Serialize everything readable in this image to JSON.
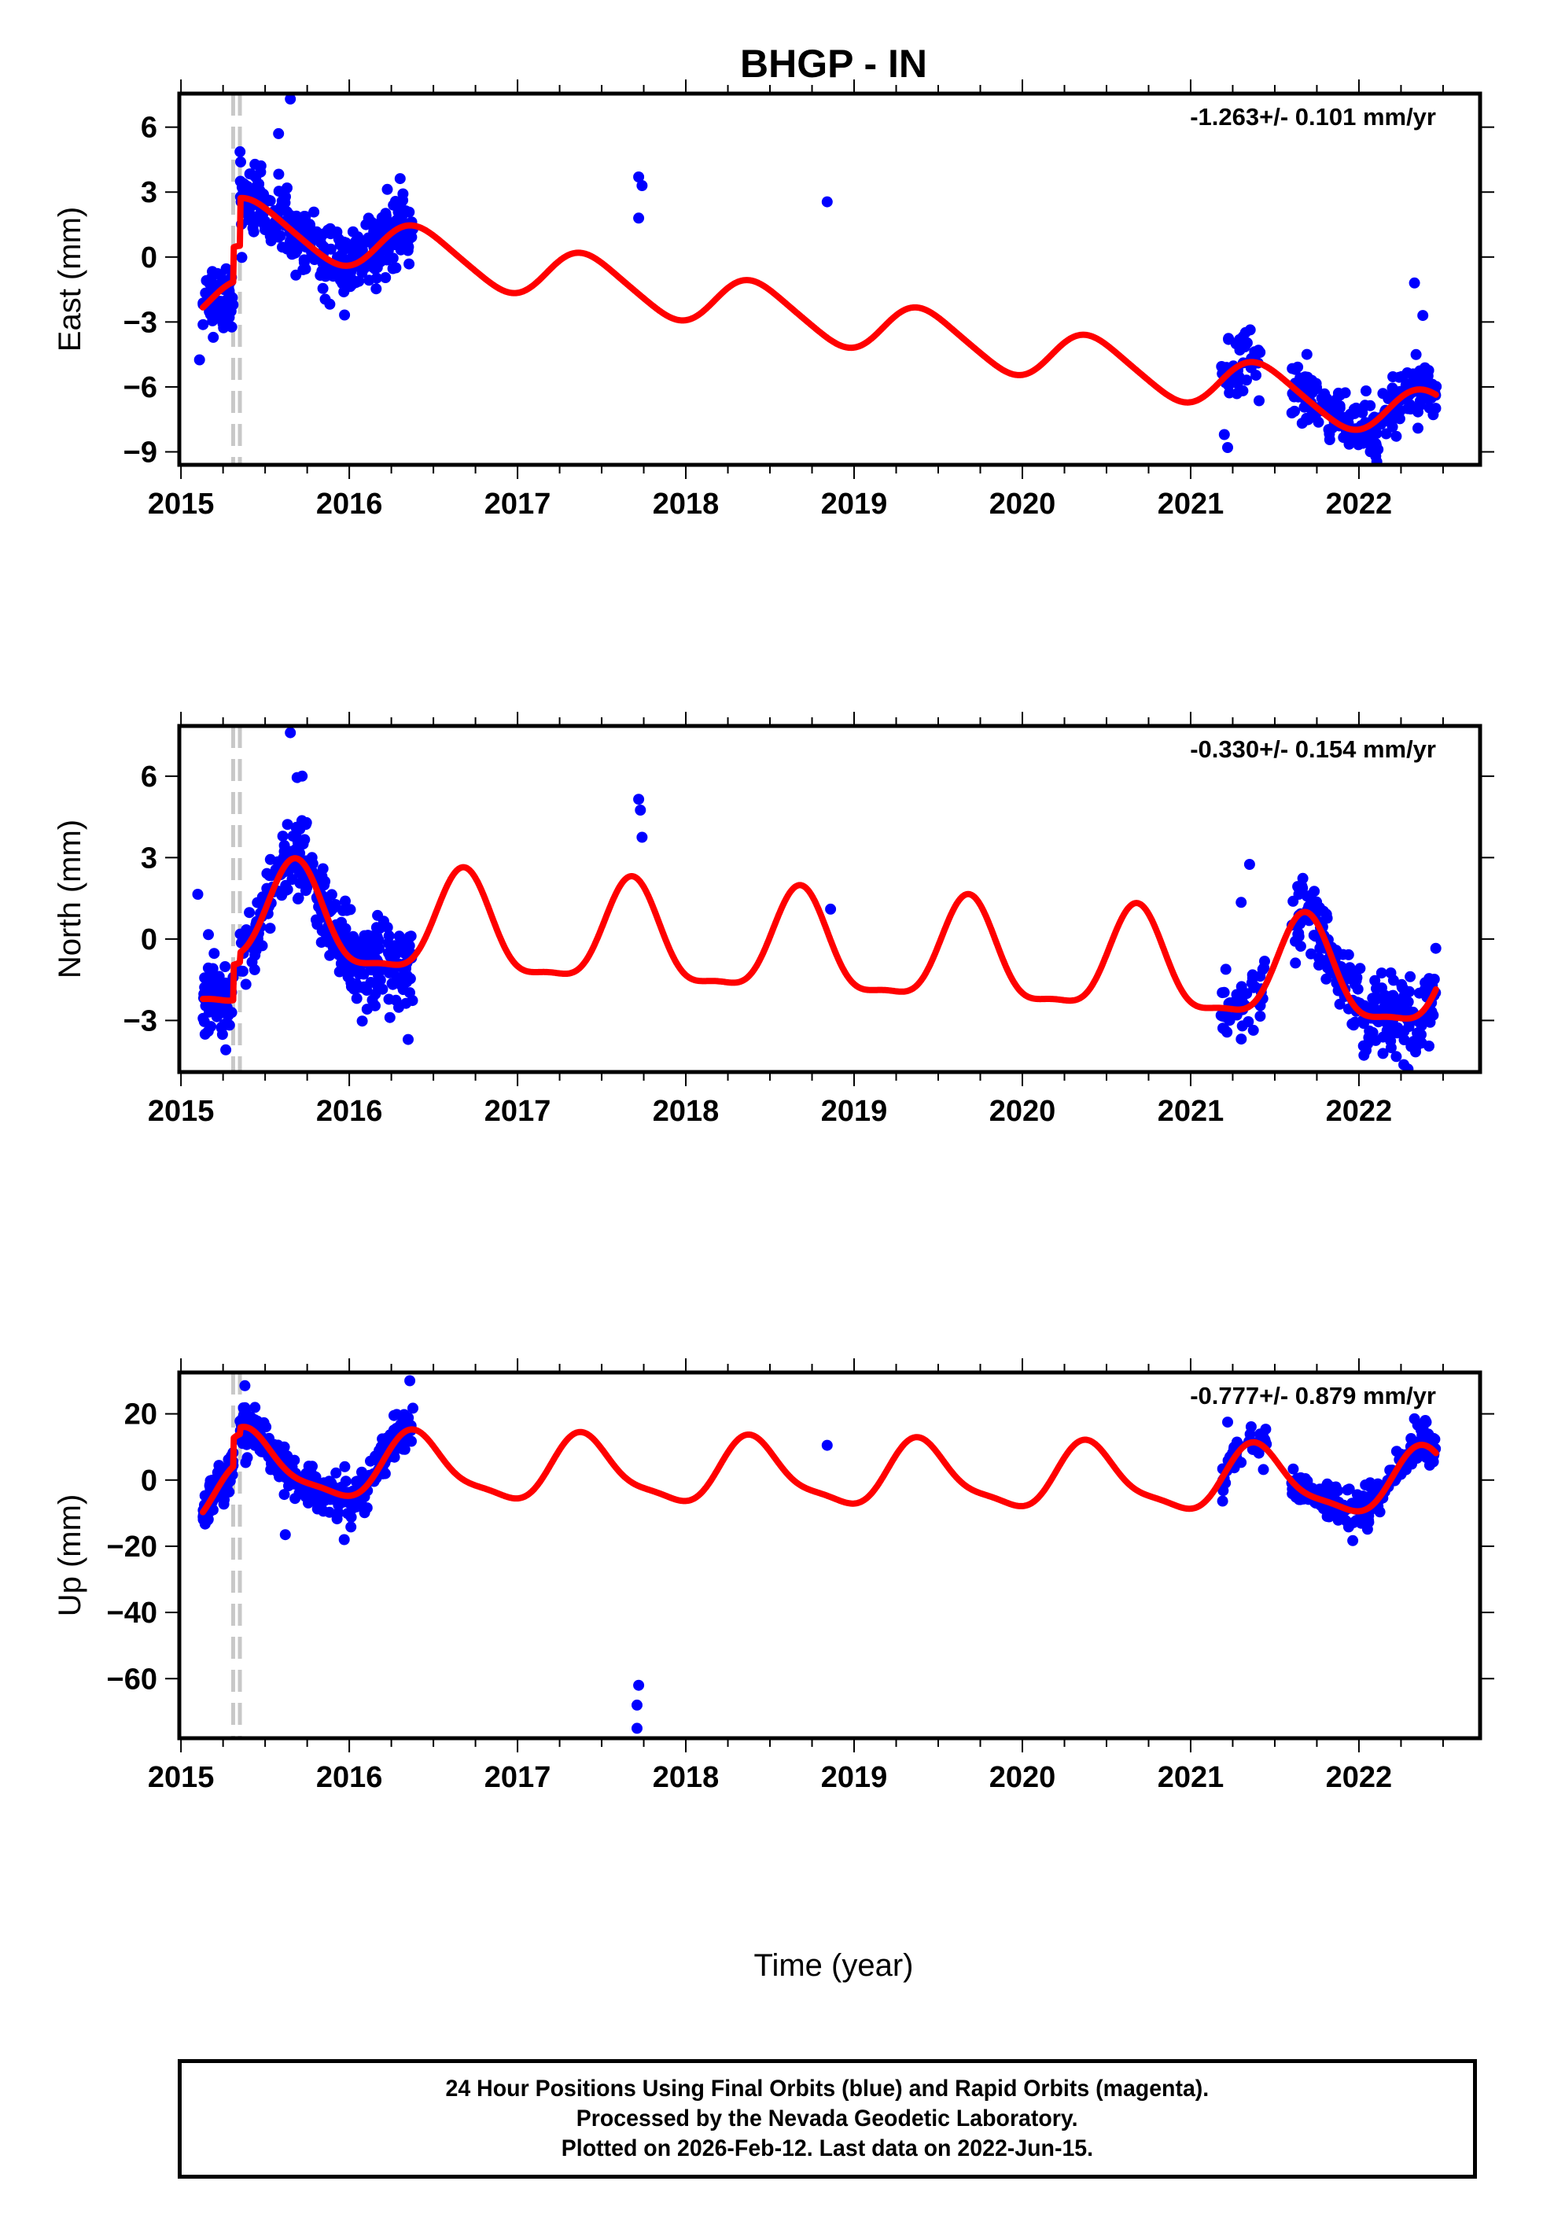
{
  "chart_data": {
    "type": "scatter",
    "title": "BHGP - IN",
    "xlabel": "Time (year)",
    "xlim": [
      2014.99,
      2022.72
    ],
    "x_ticks": [
      2015,
      2016,
      2017,
      2018,
      2019,
      2020,
      2021,
      2022
    ],
    "x_minor_step": 0.25,
    "offset_lines_year": [
      2015.31,
      2015.35
    ],
    "offset_line_color": "#c8c8c8",
    "point_color": "#0000ff",
    "fit_color": "#ff0000",
    "data_gaps": [
      [
        2016.38,
        2021.15
      ]
    ],
    "panels": [
      {
        "name": "east",
        "ylabel": "East (mm)",
        "ylim": [
          -9.6,
          7.55
        ],
        "y_ticks": [
          6,
          3,
          0,
          -3,
          -6,
          -9
        ],
        "rate_label": "-1.263+/- 0.101 mm/yr",
        "fit_model": {
          "trend": -1.263,
          "intercept_2015": 1.9,
          "annual_amp": 1.15,
          "annual_peak": 0.42,
          "semiannual_amp": 0.15,
          "semiannual_peak": 0.3,
          "steps": [
            [
              2015.31,
              1.6
            ],
            [
              2015.35,
              2.2
            ]
          ],
          "start_value_offset": -3.7
        },
        "segments": [
          {
            "from": 2015.13,
            "to": 2015.31,
            "center": -1.9,
            "spread": 1.0,
            "n": 70
          },
          {
            "from": 2015.35,
            "to": 2016.38,
            "center": "fit",
            "spread": 1.05,
            "n": 330
          },
          {
            "from": 2021.18,
            "to": 2021.42,
            "center": "fit",
            "spread": 0.9,
            "n": 45
          },
          {
            "from": 2021.6,
            "to": 2022.46,
            "center": "fit",
            "spread": 0.9,
            "n": 230
          }
        ],
        "outliers": [
          [
            2015.11,
            -4.75
          ],
          [
            2015.65,
            7.3
          ],
          [
            2015.58,
            5.7
          ],
          [
            2017.72,
            3.7
          ],
          [
            2017.74,
            3.3
          ],
          [
            2017.72,
            1.8
          ],
          [
            2018.84,
            2.55
          ],
          [
            2022.33,
            -1.2
          ],
          [
            2022.38,
            -2.7
          ],
          [
            2021.2,
            -8.2
          ],
          [
            2021.22,
            -8.8
          ],
          [
            2022.1,
            -9.2
          ]
        ]
      },
      {
        "name": "north",
        "ylabel": "North (mm)",
        "ylim": [
          -4.9,
          7.85
        ],
        "y_ticks": [
          6,
          3,
          0,
          -3
        ],
        "rate_label": "-0.330+/- 0.154 mm/yr",
        "fit_model": {
          "trend": -0.33,
          "intercept_2015": 0.9,
          "annual_amp": 1.85,
          "annual_peak": 0.68,
          "semiannual_amp": 0.55,
          "semiannual_peak": 0.18,
          "steps": [
            [
              2015.31,
              1.3
            ],
            [
              2015.35,
              0.35
            ]
          ],
          "start_value_offset": -1.75
        },
        "segments": [
          {
            "from": 2015.13,
            "to": 2015.31,
            "center": "fit",
            "spread": 1.0,
            "n": 70
          },
          {
            "from": 2015.35,
            "to": 2016.38,
            "center": "fit",
            "spread": 1.0,
            "n": 330
          },
          {
            "from": 2021.18,
            "to": 2021.45,
            "center": "fit",
            "spread": 0.9,
            "n": 45
          },
          {
            "from": 2021.6,
            "to": 2022.46,
            "center": "fit",
            "spread": 0.95,
            "n": 230
          }
        ],
        "outliers": [
          [
            2015.65,
            7.6
          ],
          [
            2015.72,
            6.0
          ],
          [
            2015.69,
            5.95
          ],
          [
            2017.72,
            5.15
          ],
          [
            2017.73,
            4.75
          ],
          [
            2017.74,
            3.75
          ],
          [
            2018.86,
            1.1
          ],
          [
            2021.35,
            2.75
          ],
          [
            2021.3,
            1.35
          ],
          [
            2016.35,
            -3.7
          ],
          [
            2015.1,
            1.65
          ]
        ]
      },
      {
        "name": "up",
        "ylabel": "Up (mm)",
        "ylim": [
          -78,
          32.5
        ],
        "y_ticks": [
          20,
          0,
          -20,
          -40,
          -60
        ],
        "rate_label": "-0.777+/- 0.879 mm/yr",
        "fit_model": {
          "trend": -0.777,
          "intercept_2015": 3.0,
          "annual_amp": 9.5,
          "annual_peak": 0.4,
          "semiannual_amp": 2.6,
          "semiannual_peak": 0.35,
          "steps": [
            [
              2015.31,
              8.5
            ],
            [
              2015.35,
              2.0
            ]
          ],
          "start_value_offset": -9.0
        },
        "segments": [
          {
            "from": 2015.13,
            "to": 2015.31,
            "center": "fit",
            "spread": 4.0,
            "n": 70
          },
          {
            "from": 2015.35,
            "to": 2016.38,
            "center": "fit",
            "spread": 4.3,
            "n": 330
          },
          {
            "from": 2021.18,
            "to": 2021.45,
            "center": "fit",
            "spread": 4.0,
            "n": 45
          },
          {
            "from": 2021.6,
            "to": 2022.46,
            "center": "fit",
            "spread": 4.0,
            "n": 230
          }
        ],
        "outliers": [
          [
            2016.36,
            30.0
          ],
          [
            2015.38,
            28.5
          ],
          [
            2017.72,
            -62.0
          ],
          [
            2017.71,
            -68.0
          ],
          [
            2017.71,
            -75.0
          ],
          [
            2018.84,
            10.5
          ],
          [
            2015.97,
            -18.0
          ],
          [
            2015.62,
            -16.5
          ],
          [
            2021.22,
            17.5
          ],
          [
            2022.33,
            18.5
          ],
          [
            2022.4,
            17.5
          ]
        ]
      }
    ]
  },
  "footer": {
    "lines": [
      "24 Hour Positions Using Final Orbits (blue) and Rapid Orbits (magenta).",
      "Processed by the Nevada Geodetic Laboratory.",
      "Plotted on 2026-Feb-12. Last data on 2022-Jun-15."
    ]
  }
}
